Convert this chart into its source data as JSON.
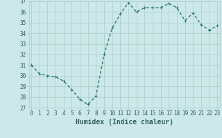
{
  "x": [
    0,
    1,
    2,
    3,
    4,
    5,
    6,
    7,
    8,
    9,
    10,
    11,
    12,
    13,
    14,
    15,
    16,
    17,
    18,
    19,
    20,
    21,
    22,
    23
  ],
  "y": [
    31,
    30.2,
    30.0,
    29.9,
    29.5,
    28.7,
    27.8,
    27.3,
    28.1,
    32.0,
    34.5,
    35.8,
    36.9,
    36.0,
    36.4,
    36.4,
    36.4,
    36.8,
    36.4,
    35.2,
    35.9,
    34.8,
    34.3,
    34.7
  ],
  "xlabel": "Humidex (Indice chaleur)",
  "ylim": [
    27,
    37
  ],
  "xlim": [
    -0.3,
    23.3
  ],
  "yticks": [
    27,
    28,
    29,
    30,
    31,
    32,
    33,
    34,
    35,
    36,
    37
  ],
  "xticks": [
    0,
    1,
    2,
    3,
    4,
    5,
    6,
    7,
    8,
    9,
    10,
    11,
    12,
    13,
    14,
    15,
    16,
    17,
    18,
    19,
    20,
    21,
    22,
    23
  ],
  "line_color": "#2e7d6e",
  "marker": "P",
  "bg_color": "#cce8e8",
  "grid_color": "#aacccc",
  "font_color": "#2e5f5f",
  "tick_fontsize": 5.5,
  "xlabel_fontsize": 7.0,
  "linewidth": 1.0,
  "markersize": 2.5
}
